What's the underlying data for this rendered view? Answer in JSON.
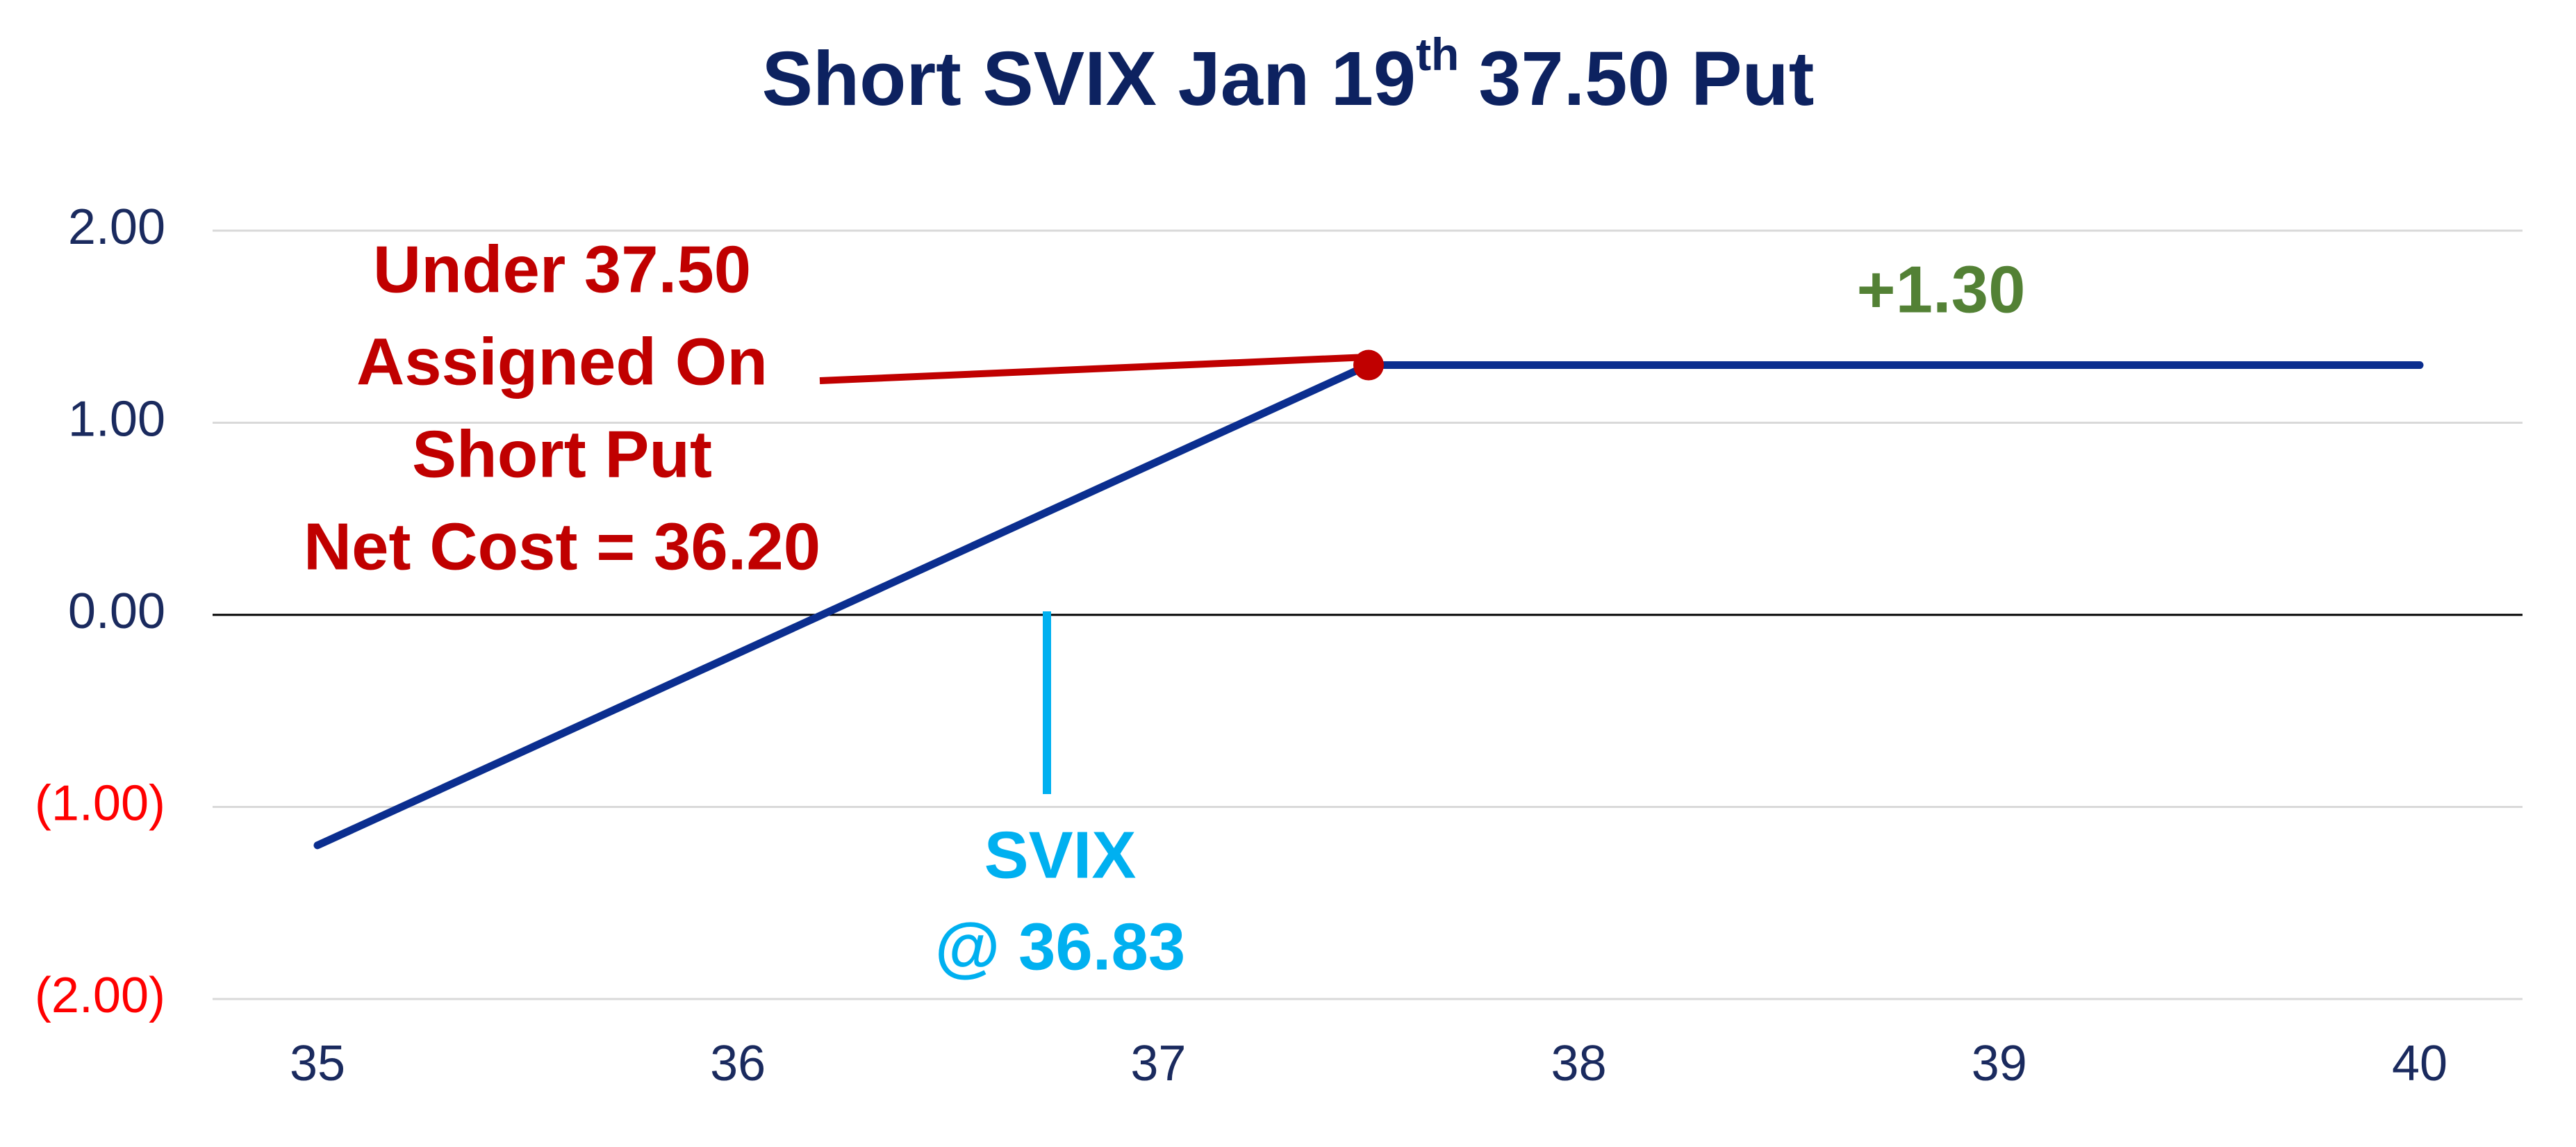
{
  "chart_data": {
    "type": "line",
    "title": [
      "Short SVIX Jan 19",
      "th",
      "37.50 Put"
    ],
    "x": [
      35,
      37.5,
      40
    ],
    "series": [
      {
        "name": "Short Put",
        "color": "#0b2e8f",
        "values": [
          -1.2,
          1.3,
          1.3
        ]
      }
    ],
    "marker_color": "#c00000",
    "xlim": [
      35,
      40
    ],
    "xticks": [
      35,
      36,
      37,
      38,
      39,
      40
    ],
    "ylim": [
      -2,
      2
    ],
    "yticks": [
      {
        "value": -2,
        "label": "(2.00)"
      },
      {
        "value": -1,
        "label": "(1.00)"
      },
      {
        "value": 0,
        "label": "0.00"
      },
      {
        "value": 1,
        "label": "1.00"
      },
      {
        "value": 2,
        "label": "2.00"
      }
    ],
    "tick_color": "#1a2a5e",
    "negative_tick_color": "#ff0000",
    "grid": true,
    "annotations": {
      "assignment": [
        "Under 37.50",
        "Assigned On",
        "Short Put",
        "Net Cost = 36.20"
      ],
      "max_profit": "+1.30",
      "price": [
        "SVIX",
        "@ 36.83"
      ]
    }
  }
}
